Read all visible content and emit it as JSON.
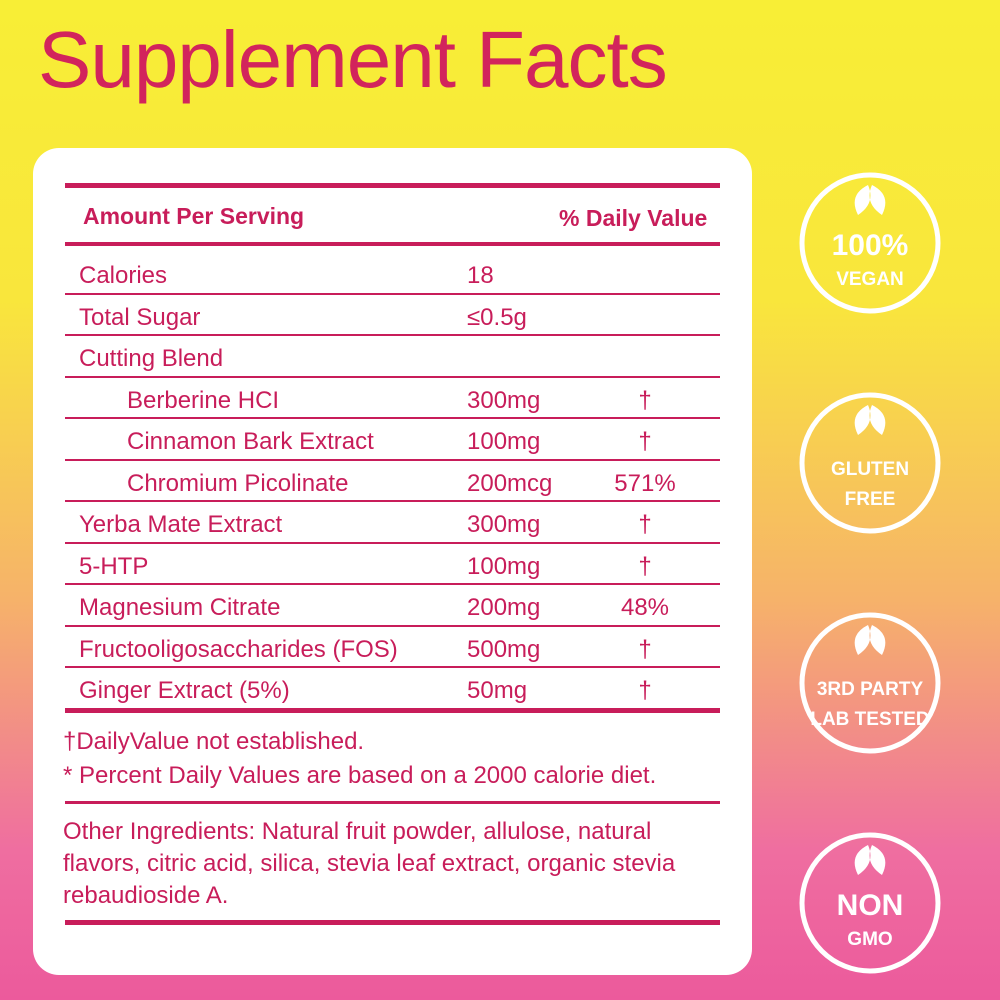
{
  "title": "Supplement Facts",
  "table": {
    "header": {
      "amount": "Amount Per Serving",
      "daily_value": "% Daily Value"
    },
    "rows": [
      {
        "name": "Calories",
        "amount": "18"
      },
      {
        "name": "Total Sugar",
        "amount": "≤0.5g"
      },
      {
        "name": "Cutting Blend",
        "items": [
          {
            "name": "Berberine HCI",
            "amount": "300mg",
            "daily_value": "†"
          },
          {
            "name": "Cinnamon Bark Extract",
            "amount": "100mg",
            "daily_value": "†"
          },
          {
            "name": "Chromium Picolinate",
            "amount": "200mcg",
            "daily_value": "571%"
          }
        ]
      },
      {
        "name": "Yerba Mate Extract",
        "amount": "300mg",
        "daily_value": "†"
      },
      {
        "name": "5-HTP",
        "amount": "100mg",
        "daily_value": "†"
      },
      {
        "name": "Magnesium Citrate",
        "amount": "200mg",
        "daily_value": "48%"
      },
      {
        "name": "Fructooligosaccharides (FOS)",
        "amount": "500mg",
        "daily_value": "†"
      },
      {
        "name": "Ginger Extract (5%)",
        "amount": "50mg",
        "daily_value": "†"
      }
    ]
  },
  "footnotes": [
    "†DailyValue not established.",
    "* Percent Daily Values are based on a 2000 calorie diet."
  ],
  "other_ingredients": "Other Ingredients: Natural fruit powder, allulose, natural flavors, citric acid, silica, stevia leaf extract, organic stevia rebaudioside A.",
  "badges": [
    {
      "lines": [
        "100%",
        "VEGAN"
      ]
    },
    {
      "lines": [
        "GLUTEN",
        "FREE"
      ]
    },
    {
      "lines": [
        "3RD PARTY",
        "LAB TESTED"
      ]
    },
    {
      "lines": [
        "NON",
        "GMO"
      ]
    }
  ]
}
